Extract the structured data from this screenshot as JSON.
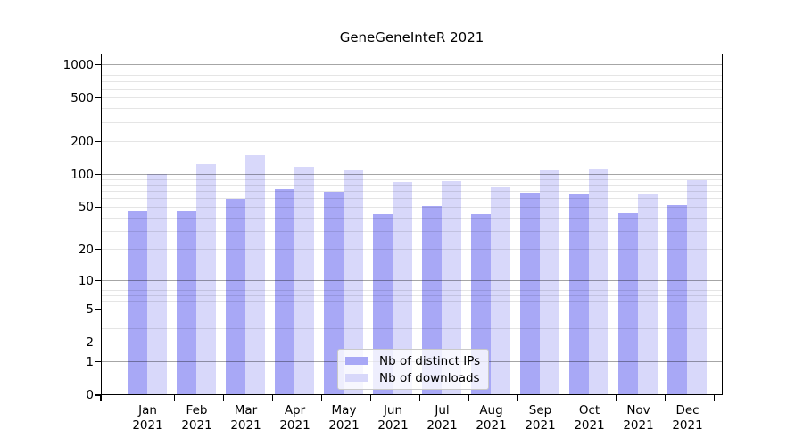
{
  "title": "GeneGeneInteR 2021",
  "legend": {
    "items": [
      {
        "label": "Nb of distinct IPs",
        "color": "#a8a8f6"
      },
      {
        "label": "Nb of downloads",
        "color": "#d8d8fa"
      }
    ]
  },
  "chart_data": {
    "type": "bar",
    "title": "GeneGeneInteR 2021",
    "categories": [
      "Jan 2021",
      "Feb 2021",
      "Mar 2021",
      "Apr 2021",
      "May 2021",
      "Jun 2021",
      "Jul 2021",
      "Aug 2021",
      "Sep 2021",
      "Oct 2021",
      "Nov 2021",
      "Dec 2021"
    ],
    "series": [
      {
        "name": "Nb of distinct IPs",
        "color": "#a8a8f6",
        "values": [
          47,
          47,
          60,
          73,
          70,
          43,
          51,
          43,
          68,
          65,
          44,
          52
        ]
      },
      {
        "name": "Nb of downloads",
        "color": "#d8d8fa",
        "values": [
          101,
          125,
          150,
          118,
          110,
          86,
          87,
          76,
          109,
          113,
          65,
          89
        ]
      }
    ],
    "xlabel": "",
    "ylabel": "",
    "yscale": "log1p",
    "yticks": [
      0,
      1,
      2,
      5,
      10,
      20,
      50,
      100,
      200,
      500,
      1000
    ],
    "ylim": [
      0,
      1268
    ],
    "grid": true,
    "legend_position": "bottom-center-inside"
  }
}
